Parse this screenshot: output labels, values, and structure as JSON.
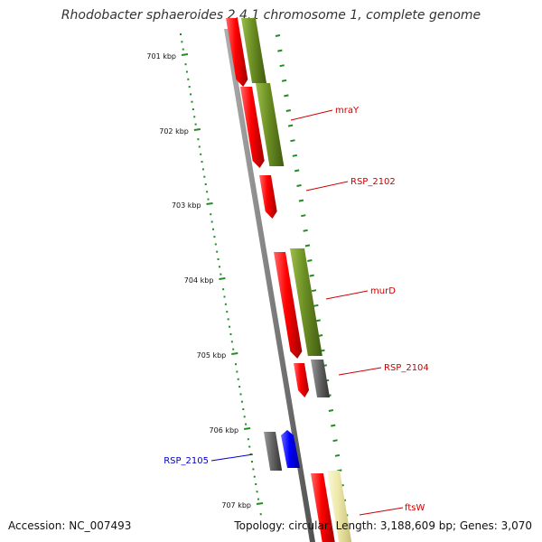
{
  "title": "Rhodobacter sphaeroides 2.4.1 chromosome 1, complete genome",
  "footer": {
    "accession": "Accession: NC_007493",
    "topology": "Topology: circular; Length: 3,188,609 bp; Genes: 3,070"
  },
  "colors": {
    "backbone": "#808080",
    "tick": "#228B22",
    "gene_red": "#ff0000",
    "gene_olive": "#6b8e23",
    "gene_gray": "#666666",
    "gene_blue": "#0000ff",
    "gene_yellow": "#eee8aa",
    "label_red": "#cc0000",
    "label_blue": "#0000cc"
  },
  "scale": [
    {
      "label": "701 kbp"
    },
    {
      "label": "702 kbp"
    },
    {
      "label": "703 kbp"
    },
    {
      "label": "704 kbp"
    },
    {
      "label": "705 kbp"
    },
    {
      "label": "706 kbp"
    },
    {
      "label": "707 kbp"
    }
  ],
  "gene_labels": [
    {
      "text": "mraY",
      "color": "red"
    },
    {
      "text": "RSP_2102",
      "color": "red"
    },
    {
      "text": "murD",
      "color": "red"
    },
    {
      "text": "RSP_2104",
      "color": "red"
    },
    {
      "text": "RSP_2105",
      "color": "blue"
    },
    {
      "text": "ftsW",
      "color": "red"
    }
  ]
}
